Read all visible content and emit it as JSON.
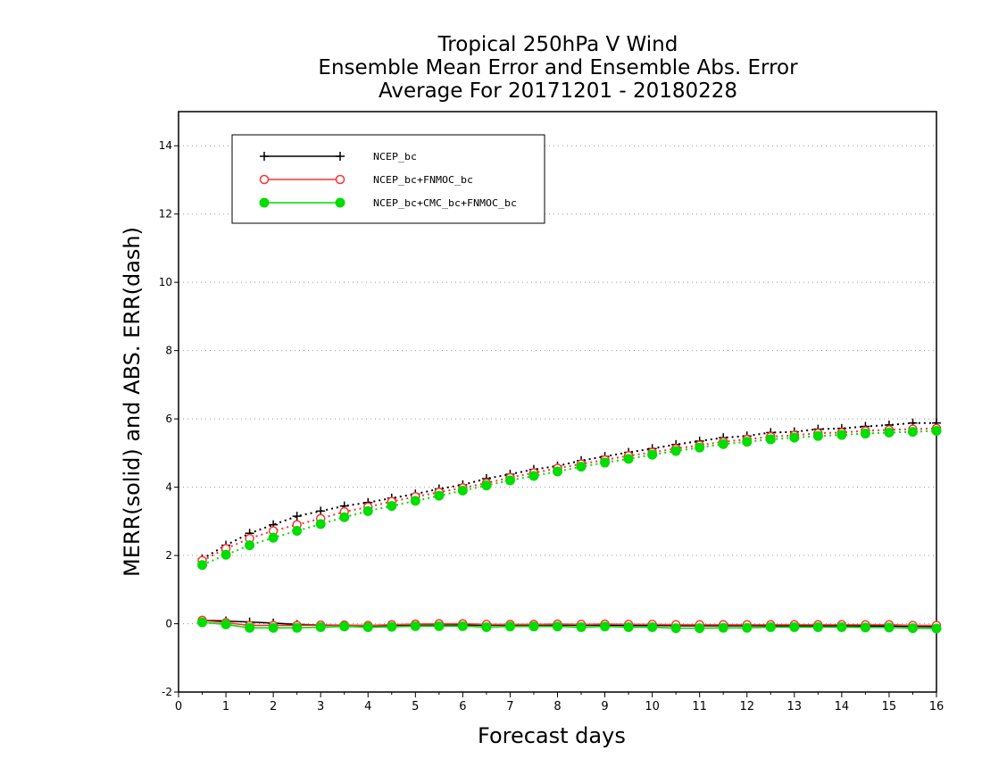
{
  "chart_data": {
    "type": "line",
    "title": [
      "Tropical 250hPa V Wind",
      "Ensemble Mean Error and Ensemble Abs. Error",
      "Average For 20171201 - 20180228"
    ],
    "xlabel": "Forecast days",
    "ylabel": "MERR(solid) and ABS. ERR(dash)",
    "xlim": [
      0,
      16
    ],
    "ylim": [
      -2,
      15
    ],
    "xticks": [
      "0",
      "1",
      "2",
      "3",
      "4",
      "5",
      "6",
      "7",
      "8",
      "9",
      "10",
      "11",
      "12",
      "13",
      "14",
      "15",
      "16"
    ],
    "yticks": [
      "-2",
      "0",
      "2",
      "4",
      "6",
      "8",
      "10",
      "12",
      "14"
    ],
    "grid": "horizontal dotted",
    "legend_position": "top-left",
    "x": [
      0.5,
      1,
      1.5,
      2,
      2.5,
      3,
      3.5,
      4,
      4.5,
      5,
      5.5,
      6,
      6.5,
      7,
      7.5,
      8,
      8.5,
      9,
      9.5,
      10,
      10.5,
      11,
      11.5,
      12,
      12.5,
      13,
      13.5,
      14,
      14.5,
      15,
      15.5,
      16
    ],
    "series": [
      {
        "name": "NCEP_bc",
        "color": "#000000",
        "marker": "plus",
        "merr": [
          0.1,
          0.08,
          0.05,
          0.02,
          -0.02,
          -0.04,
          -0.05,
          -0.06,
          -0.06,
          -0.05,
          -0.05,
          -0.04,
          -0.04,
          -0.04,
          -0.04,
          -0.04,
          -0.04,
          -0.04,
          -0.05,
          -0.05,
          -0.06,
          -0.06,
          -0.06,
          -0.06,
          -0.06,
          -0.06,
          -0.06,
          -0.06,
          -0.07,
          -0.07,
          -0.08,
          -0.09
        ],
        "abs_err": [
          1.9,
          2.3,
          2.65,
          2.9,
          3.15,
          3.3,
          3.45,
          3.55,
          3.68,
          3.8,
          3.95,
          4.07,
          4.25,
          4.38,
          4.52,
          4.62,
          4.78,
          4.9,
          5.02,
          5.13,
          5.25,
          5.35,
          5.45,
          5.5,
          5.6,
          5.62,
          5.7,
          5.72,
          5.78,
          5.82,
          5.88,
          5.88
        ]
      },
      {
        "name": "NCEP_bc+FNMOC_bc",
        "color": "#ff3030",
        "marker": "open-circle",
        "merr": [
          0.1,
          0.03,
          -0.05,
          -0.05,
          -0.05,
          -0.04,
          -0.04,
          -0.05,
          -0.03,
          -0.01,
          0.0,
          0.0,
          -0.02,
          -0.02,
          -0.02,
          -0.01,
          -0.02,
          -0.01,
          -0.02,
          -0.02,
          -0.03,
          -0.03,
          -0.03,
          -0.03,
          -0.03,
          -0.03,
          -0.03,
          -0.03,
          -0.03,
          -0.03,
          -0.05,
          -0.05
        ],
        "abs_err": [
          1.85,
          2.2,
          2.5,
          2.72,
          2.9,
          3.08,
          3.28,
          3.42,
          3.58,
          3.72,
          3.85,
          3.98,
          4.12,
          4.28,
          4.42,
          4.55,
          4.68,
          4.8,
          4.92,
          5.02,
          5.13,
          5.23,
          5.33,
          5.4,
          5.48,
          5.52,
          5.58,
          5.6,
          5.65,
          5.68,
          5.7,
          5.72
        ]
      },
      {
        "name": "NCEP_bc+CMC_bc+FNMOC_bc",
        "color": "#00dd00",
        "marker": "filled-circle",
        "merr": [
          0.04,
          -0.02,
          -0.12,
          -0.12,
          -0.12,
          -0.1,
          -0.08,
          -0.1,
          -0.09,
          -0.07,
          -0.07,
          -0.07,
          -0.1,
          -0.08,
          -0.08,
          -0.08,
          -0.1,
          -0.08,
          -0.1,
          -0.1,
          -0.13,
          -0.13,
          -0.12,
          -0.12,
          -0.1,
          -0.1,
          -0.1,
          -0.1,
          -0.11,
          -0.11,
          -0.13,
          -0.14
        ],
        "abs_err": [
          1.72,
          2.02,
          2.3,
          2.52,
          2.72,
          2.92,
          3.12,
          3.3,
          3.45,
          3.6,
          3.75,
          3.9,
          4.05,
          4.2,
          4.33,
          4.46,
          4.6,
          4.72,
          4.83,
          4.95,
          5.06,
          5.16,
          5.26,
          5.33,
          5.4,
          5.45,
          5.5,
          5.53,
          5.57,
          5.6,
          5.62,
          5.65
        ]
      }
    ]
  }
}
